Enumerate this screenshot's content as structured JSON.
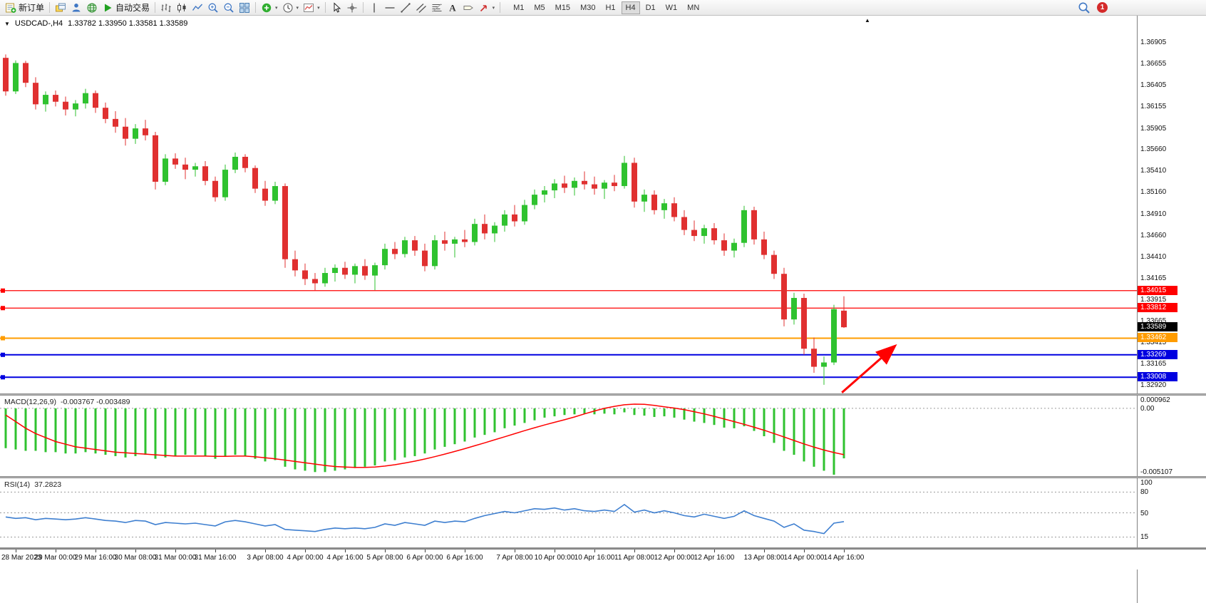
{
  "app": {
    "collapse_arrow": "▲",
    "toolbar": {
      "buttons": [
        {
          "name": "new-order",
          "icon": "new-order",
          "label": "新订单"
        },
        {
          "sep": true
        },
        {
          "name": "charts-window",
          "icon": "windows"
        },
        {
          "name": "market-watch",
          "icon": "person"
        },
        {
          "name": "history-center",
          "icon": "globe"
        },
        {
          "name": "auto-trading",
          "icon": "play",
          "label": "自动交易"
        },
        {
          "sep": true
        },
        {
          "name": "bar-chart-mode",
          "icon": "ohlc-bars"
        },
        {
          "name": "candle-chart-mode",
          "icon": "candles"
        },
        {
          "name": "line-chart-mode",
          "icon": "line"
        },
        {
          "name": "zoom-in",
          "icon": "zoom-in"
        },
        {
          "name": "zoom-out",
          "icon": "zoom-out"
        },
        {
          "name": "tile-windows",
          "icon": "grid"
        },
        {
          "sep": true
        },
        {
          "name": "indicators",
          "icon": "indicator-add",
          "caret": true
        },
        {
          "name": "periods",
          "icon": "clock",
          "caret": true
        },
        {
          "name": "templates",
          "icon": "template",
          "caret": true
        },
        {
          "sep": true
        },
        {
          "name": "cursor-tool",
          "icon": "cursor"
        },
        {
          "name": "crosshair-tool",
          "icon": "crosshair"
        },
        {
          "sep": true
        },
        {
          "name": "vertical-line-tool",
          "icon": "vline"
        },
        {
          "name": "horizontal-line-tool",
          "icon": "hline"
        },
        {
          "name": "trendline-tool",
          "icon": "trendline"
        },
        {
          "name": "channel-tool",
          "icon": "channel"
        },
        {
          "name": "fibonacci-tool",
          "icon": "fibo"
        },
        {
          "name": "text-tool",
          "icon": "text-a"
        },
        {
          "name": "label-tool",
          "icon": "label"
        },
        {
          "name": "arrows-tool",
          "icon": "arrow-obj",
          "caret": true
        },
        {
          "sep": true
        }
      ],
      "timeframes": [
        "M1",
        "M5",
        "M15",
        "M30",
        "H1",
        "H4",
        "D1",
        "W1",
        "MN"
      ],
      "active_timeframe": "H4",
      "notification_count": "1"
    }
  },
  "colors": {
    "bull": "#2FC22F",
    "bear": "#E03030",
    "macd_histogram": "#2FC22F",
    "macd_signal": "#FF0000",
    "rsi_line": "#3E7FD0",
    "tag_black": "#000000",
    "dashed_level": "#9A9A9A"
  },
  "chart_data": {
    "type": "candlestick",
    "symbol_title": "USDCAD-,H4",
    "ohlc_text": "1.33782 1.33950 1.33581 1.33589",
    "dropdown_marker": "▼",
    "price_axis_labels": [
      "1.36905",
      "1.36655",
      "1.36405",
      "1.36155",
      "1.35905",
      "1.35660",
      "1.35410",
      "1.35160",
      "1.34910",
      "1.34660",
      "1.34410",
      "1.34165",
      "1.33915",
      "1.33665",
      "1.33415",
      "1.33165",
      "1.32920"
    ],
    "price_range": {
      "top": 1.3721,
      "bottom": 1.3282
    },
    "candles": [
      [
        1.3672,
        1.3676,
        1.3628,
        1.3633
      ],
      [
        1.3633,
        1.3669,
        1.363,
        1.3666
      ],
      [
        1.3666,
        1.36685,
        1.3638,
        1.3643
      ],
      [
        1.3643,
        1.36495,
        1.3612,
        1.3618
      ],
      [
        1.3618,
        1.3633,
        1.36095,
        1.3629
      ],
      [
        1.3629,
        1.3634,
        1.36155,
        1.3621
      ],
      [
        1.3621,
        1.3627,
        1.3605,
        1.3612
      ],
      [
        1.3612,
        1.3623,
        1.3604,
        1.3619
      ],
      [
        1.3619,
        1.3636,
        1.3613,
        1.3631
      ],
      [
        1.3631,
        1.3634,
        1.3608,
        1.3614
      ],
      [
        1.3614,
        1.362,
        1.3596,
        1.3601
      ],
      [
        1.3601,
        1.361,
        1.3585,
        1.3592
      ],
      [
        1.3592,
        1.3602,
        1.357,
        1.3578
      ],
      [
        1.3578,
        1.3595,
        1.3572,
        1.359
      ],
      [
        1.359,
        1.36,
        1.3576,
        1.3582
      ],
      [
        1.3582,
        1.3586,
        1.3519,
        1.3528
      ],
      [
        1.3528,
        1.356,
        1.3524,
        1.3555
      ],
      [
        1.3555,
        1.3561,
        1.3543,
        1.3548
      ],
      [
        1.3548,
        1.3556,
        1.3531,
        1.3542
      ],
      [
        1.3542,
        1.355,
        1.3534,
        1.3546
      ],
      [
        1.3546,
        1.3552,
        1.3524,
        1.3529
      ],
      [
        1.3529,
        1.3534,
        1.3505,
        1.351
      ],
      [
        1.351,
        1.3548,
        1.3506,
        1.3542
      ],
      [
        1.3542,
        1.3562,
        1.3538,
        1.3557
      ],
      [
        1.3557,
        1.356,
        1.3539,
        1.3544
      ],
      [
        1.3544,
        1.3547,
        1.3515,
        1.352
      ],
      [
        1.352,
        1.3529,
        1.35,
        1.3506
      ],
      [
        1.3506,
        1.3528,
        1.3502,
        1.3523
      ],
      [
        1.3523,
        1.3526,
        1.3428,
        1.3438
      ],
      [
        1.3438,
        1.3448,
        1.3418,
        1.3425
      ],
      [
        1.3425,
        1.3433,
        1.3408,
        1.3415
      ],
      [
        1.3415,
        1.3422,
        1.3402,
        1.341
      ],
      [
        1.341,
        1.3428,
        1.3406,
        1.3422
      ],
      [
        1.3422,
        1.3432,
        1.3412,
        1.3428
      ],
      [
        1.3428,
        1.3435,
        1.3415,
        1.342
      ],
      [
        1.342,
        1.3433,
        1.341,
        1.343
      ],
      [
        1.343,
        1.3438,
        1.3414,
        1.3419
      ],
      [
        1.3419,
        1.3434,
        1.3402,
        1.3431
      ],
      [
        1.3431,
        1.3456,
        1.3426,
        1.345
      ],
      [
        1.345,
        1.3458,
        1.3438,
        1.3444
      ],
      [
        1.3444,
        1.3464,
        1.344,
        1.346
      ],
      [
        1.346,
        1.3465,
        1.3442,
        1.3448
      ],
      [
        1.3448,
        1.3456,
        1.3424,
        1.343
      ],
      [
        1.343,
        1.3466,
        1.3426,
        1.346
      ],
      [
        1.346,
        1.347,
        1.3448,
        1.3456
      ],
      [
        1.3456,
        1.3464,
        1.344,
        1.3461
      ],
      [
        1.3461,
        1.3472,
        1.3452,
        1.3458
      ],
      [
        1.3458,
        1.3485,
        1.3454,
        1.3479
      ],
      [
        1.3479,
        1.349,
        1.3461,
        1.3468
      ],
      [
        1.3468,
        1.3481,
        1.3458,
        1.3477
      ],
      [
        1.3477,
        1.3495,
        1.347,
        1.349
      ],
      [
        1.349,
        1.3501,
        1.3476,
        1.3482
      ],
      [
        1.3482,
        1.3507,
        1.3478,
        1.3501
      ],
      [
        1.3501,
        1.3519,
        1.3496,
        1.3513
      ],
      [
        1.3513,
        1.3523,
        1.3504,
        1.3518
      ],
      [
        1.3518,
        1.3531,
        1.3509,
        1.3526
      ],
      [
        1.3526,
        1.3535,
        1.3515,
        1.3521
      ],
      [
        1.3521,
        1.3533,
        1.3512,
        1.3529
      ],
      [
        1.3529,
        1.354,
        1.3519,
        1.3525
      ],
      [
        1.3525,
        1.3534,
        1.3513,
        1.352
      ],
      [
        1.352,
        1.353,
        1.3508,
        1.3527
      ],
      [
        1.3527,
        1.3536,
        1.3517,
        1.3523
      ],
      [
        1.3523,
        1.3558,
        1.352,
        1.355
      ],
      [
        1.355,
        1.3556,
        1.3498,
        1.3505
      ],
      [
        1.3505,
        1.3519,
        1.3493,
        1.3513
      ],
      [
        1.3513,
        1.3518,
        1.349,
        1.3495
      ],
      [
        1.3495,
        1.3508,
        1.3485,
        1.3503
      ],
      [
        1.3503,
        1.351,
        1.3482,
        1.3487
      ],
      [
        1.3487,
        1.3495,
        1.3466,
        1.3472
      ],
      [
        1.3472,
        1.3483,
        1.3459,
        1.3465
      ],
      [
        1.3465,
        1.3478,
        1.3456,
        1.3474
      ],
      [
        1.3474,
        1.348,
        1.3455,
        1.346
      ],
      [
        1.346,
        1.3468,
        1.3442,
        1.3448
      ],
      [
        1.3448,
        1.3462,
        1.344,
        1.3457
      ],
      [
        1.3457,
        1.35,
        1.3452,
        1.3495
      ],
      [
        1.3495,
        1.3499,
        1.3455,
        1.3461
      ],
      [
        1.3461,
        1.347,
        1.3438,
        1.3443
      ],
      [
        1.3443,
        1.3448,
        1.3415,
        1.3421
      ],
      [
        1.3421,
        1.3428,
        1.336,
        1.3368
      ],
      [
        1.3368,
        1.3399,
        1.3362,
        1.3393
      ],
      [
        1.3393,
        1.3398,
        1.3327,
        1.3334
      ],
      [
        1.3334,
        1.3347,
        1.3306,
        1.3313
      ],
      [
        1.3313,
        1.3325,
        1.3292,
        1.3318
      ],
      [
        1.3318,
        1.3385,
        1.3315,
        1.338
      ],
      [
        1.33782,
        1.3395,
        1.33581,
        1.33589
      ]
    ],
    "hlines": [
      {
        "price": 1.34015,
        "label": "1.34015",
        "color": "#FF0000",
        "width": 1.2
      },
      {
        "price": 1.33812,
        "label": "1.33812",
        "color": "#FF0000",
        "width": 1.2
      },
      {
        "price": 1.33462,
        "label": "1.33462",
        "color": "#FF9C00",
        "width": 2
      },
      {
        "price": 1.33269,
        "label": "1.33269",
        "color": "#0000E0",
        "width": 2
      },
      {
        "price": 1.33008,
        "label": "1.33008",
        "color": "#0000E0",
        "width": 2
      }
    ],
    "current_price_tag": {
      "price": 1.33589,
      "label": "1.33589",
      "bg": "#000000"
    },
    "arrow_annotation": {
      "from_bar": 83.8,
      "from_price": 1.3283,
      "to_bar": 89.0,
      "to_price": 1.3336,
      "color": "#FF0000"
    },
    "macd": {
      "label": "MACD(12,26,9)",
      "values_text": "-0.003767 -0.003489",
      "range": {
        "max": 0.000962,
        "min": -0.005107
      },
      "axis_labels": {
        "top": "0.000962",
        "zero": "0.00",
        "bottom": "-0.005107"
      },
      "histogram": [
        -0.003,
        -0.0031,
        -0.0032,
        -0.0032,
        -0.0033,
        -0.0033,
        -0.0034,
        -0.0034,
        -0.0033,
        -0.0034,
        -0.0035,
        -0.0036,
        -0.0037,
        -0.0036,
        -0.0035,
        -0.0038,
        -0.0037,
        -0.0036,
        -0.0035,
        -0.0035,
        -0.0036,
        -0.0038,
        -0.0036,
        -0.0035,
        -0.0036,
        -0.0038,
        -0.004,
        -0.0039,
        -0.0044,
        -0.0046,
        -0.0047,
        -0.0048,
        -0.0048,
        -0.0047,
        -0.0046,
        -0.0045,
        -0.0044,
        -0.0043,
        -0.004,
        -0.0039,
        -0.0037,
        -0.0036,
        -0.0034,
        -0.0031,
        -0.0029,
        -0.0027,
        -0.0025,
        -0.0022,
        -0.002,
        -0.0018,
        -0.0015,
        -0.0013,
        -0.0011,
        -0.0009,
        -0.0007,
        -0.0006,
        -0.0005,
        -0.00045,
        -0.0004,
        -0.00045,
        -0.0004,
        -0.00045,
        -0.0003,
        -0.0005,
        -0.00055,
        -0.00065,
        -0.0006,
        -0.0007,
        -0.00085,
        -0.001,
        -0.0011,
        -0.00125,
        -0.00145,
        -0.0015,
        -0.00135,
        -0.0017,
        -0.0021,
        -0.0026,
        -0.0032,
        -0.0035,
        -0.004,
        -0.0044,
        -0.0047,
        -0.005,
        -0.003767
      ],
      "signal": [
        -0.0005,
        -0.001,
        -0.0015,
        -0.0019,
        -0.0022,
        -0.0025,
        -0.0027,
        -0.0029,
        -0.003,
        -0.0031,
        -0.0032,
        -0.0033,
        -0.00335,
        -0.0034,
        -0.00345,
        -0.0035,
        -0.00355,
        -0.0036,
        -0.0036,
        -0.0036,
        -0.0036,
        -0.00362,
        -0.00362,
        -0.0036,
        -0.0036,
        -0.00365,
        -0.00372,
        -0.0038,
        -0.0039,
        -0.004,
        -0.0041,
        -0.0042,
        -0.0043,
        -0.00438,
        -0.00442,
        -0.00445,
        -0.00445,
        -0.00442,
        -0.00435,
        -0.00425,
        -0.00412,
        -0.00398,
        -0.00382,
        -0.00364,
        -0.00345,
        -0.00325,
        -0.00304,
        -0.00282,
        -0.0026,
        -0.00237,
        -0.00214,
        -0.00191,
        -0.00168,
        -0.00146,
        -0.00125,
        -0.00105,
        -0.00086,
        -0.00065,
        -0.00042,
        -0.0002,
        0.0,
        0.00015,
        0.00027,
        0.00032,
        0.0003,
        0.00022,
        0.00012,
        2e-05,
        -0.0001,
        -0.00025,
        -0.00042,
        -0.0006,
        -0.0008,
        -0.001,
        -0.0012,
        -0.00142,
        -0.00165,
        -0.0019,
        -0.00216,
        -0.00242,
        -0.00268,
        -0.00292,
        -0.00314,
        -0.00333,
        -0.003489
      ]
    },
    "rsi": {
      "label": "RSI(14)",
      "value_text": "37.2823",
      "range": {
        "max": 100,
        "min": 0
      },
      "levels": [
        {
          "value": 100,
          "label": "100",
          "dashed": false
        },
        {
          "value": 80,
          "label": "80",
          "dashed": true
        },
        {
          "value": 50,
          "label": "50",
          "dashed": true
        },
        {
          "value": 15,
          "label": "15",
          "dashed": true
        }
      ],
      "values": [
        44,
        42,
        43,
        40,
        42,
        41,
        40,
        41,
        43,
        41,
        39,
        38,
        36,
        39,
        38,
        33,
        36,
        35,
        34,
        35,
        33,
        31,
        37,
        39,
        37,
        34,
        31,
        33,
        26,
        25,
        24,
        23,
        26,
        28,
        27,
        28,
        27,
        29,
        34,
        32,
        36,
        34,
        32,
        38,
        36,
        38,
        37,
        42,
        46,
        49,
        52,
        50,
        53,
        56,
        55,
        57,
        54,
        56,
        53,
        52,
        54,
        52,
        62,
        51,
        54,
        50,
        53,
        50,
        46,
        44,
        48,
        45,
        42,
        45,
        53,
        46,
        42,
        38,
        29,
        34,
        25,
        23,
        20,
        35,
        37.28
      ]
    },
    "time_axis": [
      {
        "text": "28 Mar 2023",
        "bar": 1
      },
      {
        "text": "29 Mar 00:00",
        "bar": 5
      },
      {
        "text": "29 Mar 16:00",
        "bar": 9
      },
      {
        "text": "30 Mar 08:00",
        "bar": 13
      },
      {
        "text": "31 Mar 00:00",
        "bar": 17
      },
      {
        "text": "31 Mar 16:00",
        "bar": 21
      },
      {
        "text": "3 Apr 08:00",
        "bar": 26
      },
      {
        "text": "4 Apr 00:00",
        "bar": 30
      },
      {
        "text": "4 Apr 16:00",
        "bar": 34
      },
      {
        "text": "5 Apr 08:00",
        "bar": 38
      },
      {
        "text": "6 Apr 00:00",
        "bar": 42
      },
      {
        "text": "6 Apr 16:00",
        "bar": 46
      },
      {
        "text": "7 Apr 08:00",
        "bar": 51
      },
      {
        "text": "10 Apr 00:00",
        "bar": 55
      },
      {
        "text": "10 Apr 16:00",
        "bar": 59
      },
      {
        "text": "11 Apr 08:00",
        "bar": 63
      },
      {
        "text": "12 Apr 00:00",
        "bar": 67
      },
      {
        "text": "12 Apr 16:00",
        "bar": 71
      },
      {
        "text": "13 Apr 08:00",
        "bar": 76
      },
      {
        "text": "14 Apr 00:00",
        "bar": 80
      },
      {
        "text": "14 Apr 16:00",
        "bar": 84
      }
    ]
  }
}
